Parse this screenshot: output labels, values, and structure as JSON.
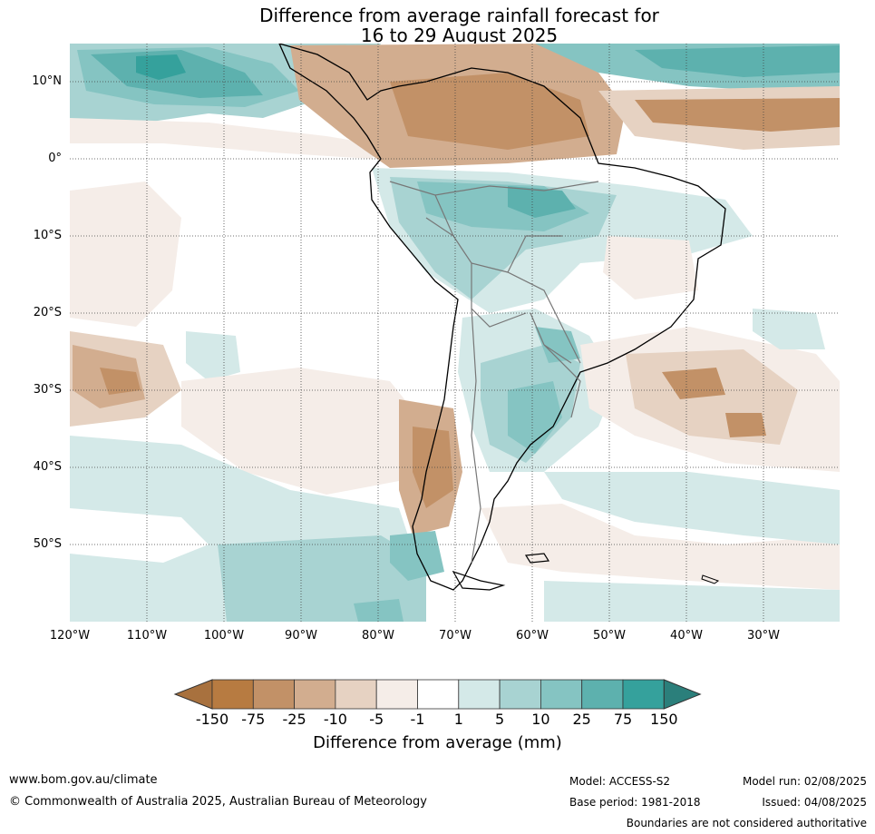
{
  "title": {
    "line1": "Difference from average rainfall forecast for",
    "line2": "16 to 29 August 2025"
  },
  "map": {
    "lat_labels": [
      "10°N",
      "0°",
      "10°S",
      "20°S",
      "30°S",
      "40°S",
      "50°S"
    ],
    "lon_labels": [
      "120°W",
      "110°W",
      "100°W",
      "90°W",
      "80°W",
      "70°W",
      "60°W",
      "50°W",
      "40°W",
      "30°W"
    ],
    "background": "#ffffff"
  },
  "colorbar": {
    "label": "Difference from average (mm)",
    "ticks": [
      "-150",
      "-75",
      "-25",
      "-10",
      "-5",
      "-1",
      "1",
      "5",
      "10",
      "25",
      "75",
      "150"
    ],
    "colors": [
      "#a8713e",
      "#b77b41",
      "#c29167",
      "#d2ad8f",
      "#e6d2c2",
      "#f5ede8",
      "#ffffff",
      "#d4e9e8",
      "#a8d3d2",
      "#85c4c2",
      "#5db1ae",
      "#35a19c",
      "#2b7f7b"
    ]
  },
  "footer": {
    "website": "www.bom.gov.au/climate",
    "copyright": "© Commonwealth of Australia 2025, Australian Bureau of Meteorology",
    "model": "Model: ACCESS-S2",
    "base_period": "Base period: 1981-2018",
    "model_run": "Model run: 02/08/2025",
    "issued": "Issued: 04/08/2025",
    "disclaimer": "Boundaries are not considered authoritative"
  }
}
